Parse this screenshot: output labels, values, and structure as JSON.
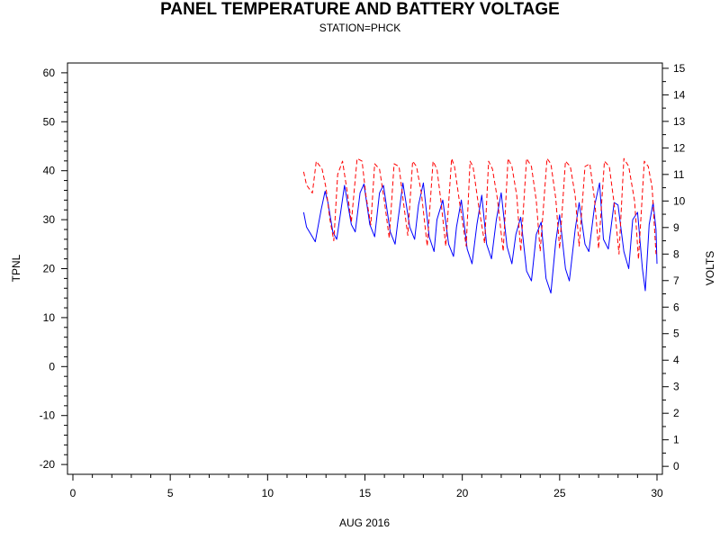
{
  "chart_data": {
    "type": "line",
    "title": "PANEL TEMPERATURE AND BATTERY VOLTAGE",
    "subtitle": "STATION=PHCK",
    "xlabel": "AUG 2016",
    "ylabel_left": "TPNL",
    "ylabel_right": "VOLTS",
    "xlim": [
      0,
      30
    ],
    "ylim_left": [
      -22,
      62
    ],
    "ylim_right": [
      -0.3,
      15.2
    ],
    "x_ticks": [
      "0",
      "5",
      "10",
      "15",
      "20",
      "25",
      "30"
    ],
    "x_tick_values": [
      0,
      5,
      10,
      15,
      20,
      25,
      30
    ],
    "y_left_ticks": [
      "-20",
      "-10",
      "0",
      "10",
      "20",
      "30",
      "40",
      "50",
      "60"
    ],
    "y_left_tick_values": [
      -20,
      -10,
      0,
      10,
      20,
      30,
      40,
      50,
      60
    ],
    "y_right_ticks": [
      "0",
      "1",
      "2",
      "3",
      "4",
      "5",
      "6",
      "7",
      "8",
      "9",
      "10",
      "11",
      "12",
      "13",
      "14",
      "15"
    ],
    "y_right_tick_values": [
      0,
      1,
      2,
      3,
      4,
      5,
      6,
      7,
      8,
      9,
      10,
      11,
      12,
      13,
      14,
      15
    ],
    "grid": false,
    "series": [
      {
        "axis": "left",
        "color": "#0000ff",
        "style": "solid",
        "x": [
          11.85,
          12.0,
          12.3,
          12.45,
          12.75,
          12.95,
          13.1,
          13.35,
          13.55,
          13.75,
          13.95,
          14.3,
          14.5,
          14.75,
          14.95,
          15.25,
          15.5,
          15.75,
          15.95,
          16.3,
          16.55,
          16.7,
          16.95,
          17.3,
          17.55,
          17.75,
          18.0,
          18.3,
          18.55,
          18.7,
          19.0,
          19.3,
          19.55,
          19.7,
          19.95,
          20.25,
          20.5,
          20.75,
          21.0,
          21.25,
          21.5,
          21.75,
          22.0,
          22.3,
          22.55,
          22.75,
          23.0,
          23.3,
          23.55,
          23.8,
          24.05,
          24.3,
          24.55,
          24.8,
          25.0,
          25.3,
          25.5,
          25.8,
          26.0,
          26.3,
          26.5,
          26.8,
          27.05,
          27.25,
          27.5,
          27.8,
          28.0,
          28.3,
          28.55,
          28.75,
          29.0,
          29.25,
          29.4,
          29.6,
          29.8,
          29.95,
          30.0
        ],
        "y": [
          31.5,
          28.5,
          26.5,
          25.5,
          32.0,
          35.8,
          33.5,
          27.5,
          26.0,
          31.5,
          37.0,
          29.0,
          27.5,
          35.5,
          37.3,
          29.0,
          26.5,
          35.5,
          37.0,
          27.5,
          25.0,
          30.0,
          37.5,
          28.5,
          26.0,
          33.0,
          37.5,
          26.5,
          23.5,
          30.0,
          34.0,
          25.0,
          22.5,
          28.5,
          34.0,
          24.0,
          21.0,
          29.0,
          35.0,
          25.0,
          22.0,
          30.0,
          35.5,
          24.5,
          21.0,
          27.0,
          30.5,
          19.5,
          17.5,
          27.0,
          29.5,
          18.0,
          15.0,
          25.5,
          31.0,
          20.0,
          17.5,
          28.0,
          33.5,
          25.0,
          23.5,
          33.0,
          37.5,
          26.0,
          24.0,
          33.5,
          33.0,
          23.5,
          20.0,
          30.0,
          31.5,
          20.0,
          15.5,
          29.0,
          33.5,
          28.0,
          21.0
        ]
      },
      {
        "axis": "right",
        "color": "#ff0000",
        "style": "dashed",
        "x": [
          11.85,
          12.0,
          12.3,
          12.5,
          12.8,
          13.0,
          13.2,
          13.4,
          13.6,
          13.85,
          14.1,
          14.3,
          14.6,
          14.85,
          15.05,
          15.3,
          15.5,
          15.75,
          16.0,
          16.25,
          16.5,
          16.75,
          16.95,
          17.2,
          17.45,
          17.65,
          17.9,
          18.2,
          18.5,
          18.7,
          18.9,
          19.15,
          19.45,
          19.6,
          19.85,
          20.2,
          20.4,
          20.55,
          20.8,
          21.15,
          21.35,
          21.55,
          21.8,
          22.1,
          22.35,
          22.55,
          22.8,
          23.0,
          23.3,
          23.55,
          23.8,
          24.0,
          24.35,
          24.55,
          24.8,
          25.0,
          25.3,
          25.55,
          25.8,
          26.0,
          26.3,
          26.55,
          26.8,
          27.0,
          27.3,
          27.55,
          27.8,
          28.05,
          28.3,
          28.55,
          28.85,
          29.05,
          29.35,
          29.55,
          29.75,
          29.95
        ],
        "y": [
          11.1,
          10.6,
          10.3,
          11.5,
          11.2,
          10.5,
          9.3,
          8.5,
          11.0,
          11.5,
          10.3,
          9.2,
          11.6,
          11.5,
          10.2,
          9.1,
          11.4,
          11.2,
          10.0,
          8.6,
          11.4,
          11.3,
          10.1,
          8.7,
          11.5,
          11.3,
          10.3,
          8.3,
          11.5,
          11.2,
          10.0,
          8.3,
          11.6,
          11.3,
          10.0,
          8.3,
          11.5,
          11.3,
          10.0,
          8.4,
          11.5,
          11.2,
          10.1,
          8.1,
          11.6,
          11.3,
          10.2,
          8.1,
          11.6,
          11.3,
          10.0,
          8.1,
          11.6,
          11.4,
          10.1,
          8.2,
          11.5,
          11.3,
          10.2,
          8.3,
          11.3,
          11.4,
          10.0,
          8.2,
          11.5,
          11.3,
          9.9,
          8.0,
          11.6,
          11.3,
          10.0,
          7.8,
          11.5,
          11.3,
          10.5,
          8.0
        ]
      }
    ]
  }
}
